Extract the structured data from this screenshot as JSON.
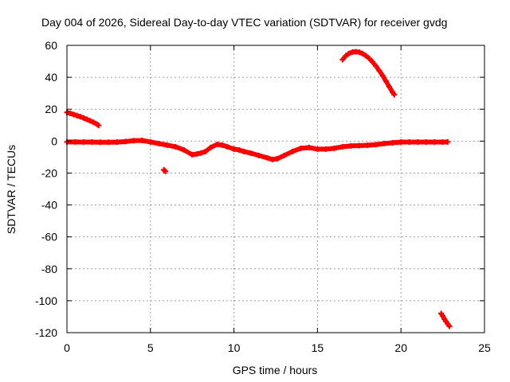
{
  "chart_data": {
    "type": "scatter",
    "title": "Day 004 of 2026, Sidereal Day-to-day VTEC variation (SDTVAR) for receiver gvdg",
    "xlabel": "GPS time / hours",
    "ylabel": "SDTVAR / TECUs",
    "xlim": [
      0,
      25
    ],
    "ylim": [
      -120,
      60
    ],
    "xticks": [
      0,
      5,
      10,
      15,
      20,
      25
    ],
    "yticks": [
      -120,
      -100,
      -80,
      -60,
      -40,
      -20,
      0,
      20,
      40,
      60
    ],
    "xtick_labels": [
      "0",
      "5",
      "10",
      "15",
      "20",
      "25"
    ],
    "ytick_labels": [
      "-120",
      "-100",
      "-80",
      "-60",
      "-40",
      "-20",
      "0",
      "20",
      "40",
      "60"
    ],
    "grid": true,
    "marker": "plus",
    "color": "#ff0000",
    "series": [
      {
        "name": "baseline",
        "x": [
          0.0,
          0.5,
          1.0,
          1.5,
          2.0,
          2.5,
          3.0,
          3.5,
          4.0,
          4.5,
          5.0,
          5.5,
          6.0,
          6.5,
          7.0,
          7.5,
          7.8,
          8.0,
          8.3,
          8.6,
          9.0,
          9.3,
          9.6,
          10.0,
          10.3,
          10.6,
          11.0,
          11.5,
          12.0,
          12.3,
          12.6,
          13.0,
          13.5,
          14.0,
          14.5,
          15.0,
          15.5,
          16.0,
          16.5,
          17.0,
          17.5,
          18.0,
          18.5,
          19.0,
          19.5,
          20.0,
          20.5,
          21.0,
          21.5,
          22.0,
          22.5,
          22.8
        ],
        "y": [
          -0.5,
          -0.5,
          -0.6,
          -0.6,
          -0.7,
          -0.7,
          -0.6,
          -0.3,
          0.3,
          0.4,
          -0.5,
          -1.5,
          -2.5,
          -3.5,
          -5.5,
          -8.5,
          -8.0,
          -7.5,
          -6.5,
          -4.0,
          -2.0,
          -2.5,
          -3.5,
          -5.0,
          -5.5,
          -6.5,
          -7.5,
          -9.0,
          -10.5,
          -11.5,
          -11.0,
          -9.0,
          -6.5,
          -4.5,
          -4.0,
          -5.0,
          -5.0,
          -4.5,
          -3.5,
          -3.0,
          -2.8,
          -2.6,
          -2.2,
          -1.5,
          -1.0,
          -0.6,
          -0.6,
          -0.6,
          -0.6,
          -0.6,
          -0.6,
          -0.5
        ]
      },
      {
        "name": "arc-start",
        "x": [
          0.0,
          0.2,
          0.4,
          0.6,
          0.8,
          1.0,
          1.2,
          1.4,
          1.6,
          1.8,
          1.9
        ],
        "y": [
          18.0,
          17.4,
          16.7,
          16.0,
          15.3,
          14.5,
          13.6,
          12.7,
          11.7,
          10.6,
          9.8
        ]
      },
      {
        "name": "arc-peak",
        "x": [
          16.5,
          16.7,
          16.9,
          17.1,
          17.3,
          17.5,
          17.7,
          17.9,
          18.1,
          18.3,
          18.5,
          18.7,
          18.9,
          19.1,
          19.3,
          19.5,
          19.6
        ],
        "y": [
          51.0,
          53.5,
          55.0,
          55.8,
          56.0,
          55.7,
          54.8,
          53.5,
          51.8,
          49.6,
          47.0,
          44.2,
          41.0,
          37.6,
          34.0,
          30.6,
          29.0
        ]
      },
      {
        "name": "arc-end",
        "x": [
          22.4,
          22.5,
          22.6,
          22.7,
          22.8,
          22.9
        ],
        "y": [
          -108.0,
          -109.5,
          -111.5,
          -113.0,
          -114.5,
          -116.0
        ]
      },
      {
        "name": "isolated",
        "x": [
          5.8,
          5.85,
          5.9
        ],
        "y": [
          -18.0,
          -18.5,
          -19.0
        ]
      }
    ]
  }
}
